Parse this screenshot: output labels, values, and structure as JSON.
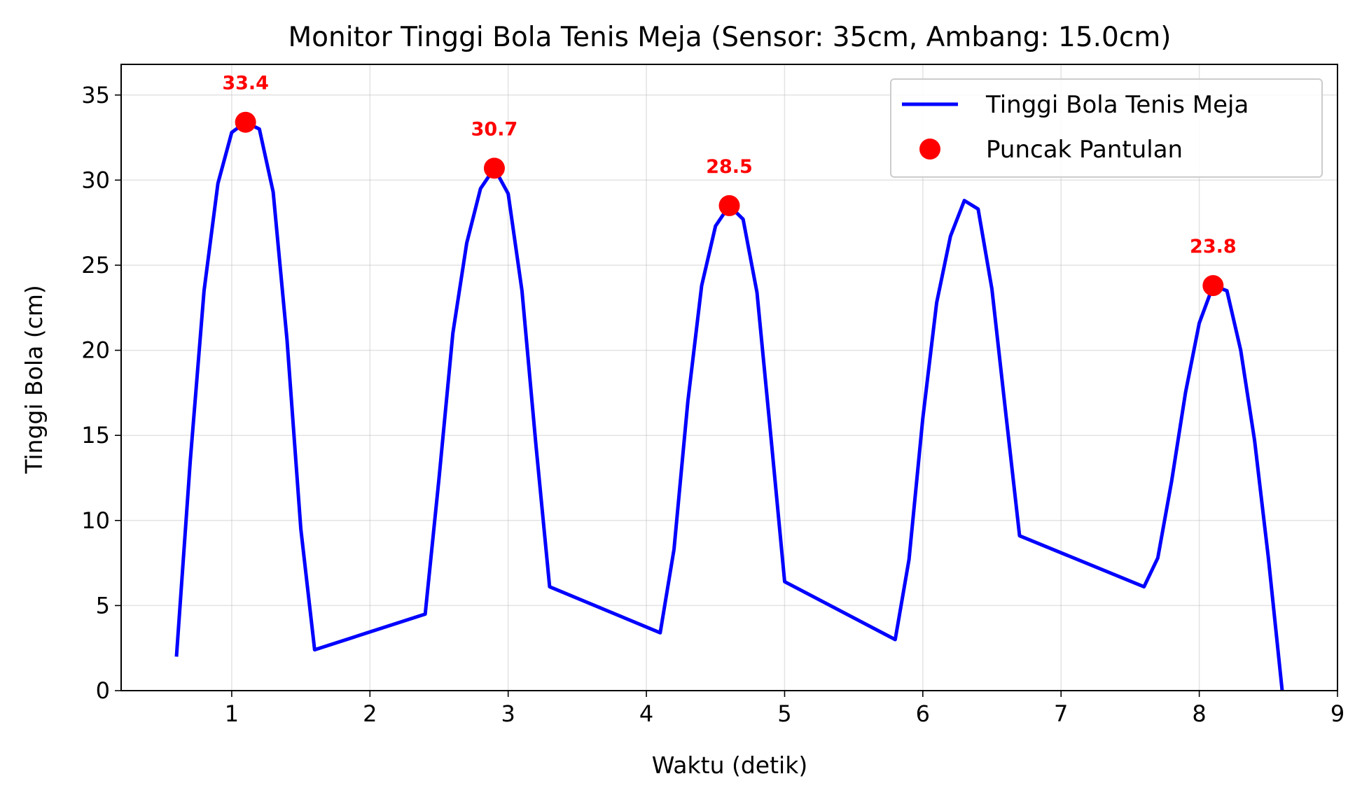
{
  "chart_data": {
    "type": "line",
    "title": "Monitor Tinggi Bola Tenis Meja (Sensor: 35cm, Ambang: 15.0cm)",
    "xlabel": "Waktu (detik)",
    "ylabel": "Tinggi Bola (cm)",
    "xlim": [
      0.2,
      9.0
    ],
    "ylim": [
      0,
      36.8
    ],
    "xticks": [
      1,
      2,
      3,
      4,
      5,
      6,
      7,
      8,
      9
    ],
    "xtick_labels": [
      "1",
      "2",
      "3",
      "4",
      "5",
      "6",
      "7",
      "8",
      "9"
    ],
    "yticks": [
      0,
      5,
      10,
      15,
      20,
      25,
      30,
      35
    ],
    "ytick_labels": [
      "0",
      "5",
      "10",
      "15",
      "20",
      "25",
      "30",
      "35"
    ],
    "grid": true,
    "legend_position": "top-right",
    "series": [
      {
        "name": "Tinggi Bola Tenis Meja",
        "kind": "line",
        "color": "#0000ff",
        "x": [
          0.6,
          0.7,
          0.8,
          0.9,
          1.0,
          1.1,
          1.2,
          1.3,
          1.4,
          1.5,
          1.6,
          2.4,
          2.5,
          2.6,
          2.7,
          2.8,
          2.9,
          3.0,
          3.1,
          3.2,
          3.3,
          4.1,
          4.2,
          4.3,
          4.4,
          4.5,
          4.6,
          4.7,
          4.8,
          4.9,
          5.0,
          5.8,
          5.9,
          6.0,
          6.1,
          6.2,
          6.3,
          6.4,
          6.5,
          6.6,
          6.7,
          7.6,
          7.7,
          7.8,
          7.9,
          8.0,
          8.1,
          8.2,
          8.3,
          8.4,
          8.5,
          8.6
        ],
        "y": [
          2.0,
          13.5,
          23.5,
          29.8,
          32.8,
          33.4,
          33.0,
          29.3,
          20.6,
          9.5,
          2.4,
          4.5,
          12.5,
          21.0,
          26.3,
          29.5,
          30.7,
          29.2,
          23.5,
          14.5,
          6.1,
          3.4,
          8.3,
          17.0,
          23.8,
          27.3,
          28.5,
          27.7,
          23.4,
          15.0,
          6.4,
          3.0,
          7.7,
          16.0,
          22.8,
          26.7,
          28.8,
          28.3,
          23.6,
          16.3,
          9.1,
          6.1,
          7.8,
          12.3,
          17.5,
          21.6,
          23.8,
          23.5,
          20.0,
          14.7,
          7.8,
          0.0
        ]
      },
      {
        "name": "Puncak Pantulan",
        "kind": "scatter",
        "color": "#ff0000",
        "x": [
          1.1,
          2.9,
          4.6,
          8.1
        ],
        "y": [
          33.4,
          30.7,
          28.5,
          23.8
        ],
        "labels": [
          "33.4",
          "30.7",
          "28.5",
          "23.8"
        ]
      }
    ]
  }
}
